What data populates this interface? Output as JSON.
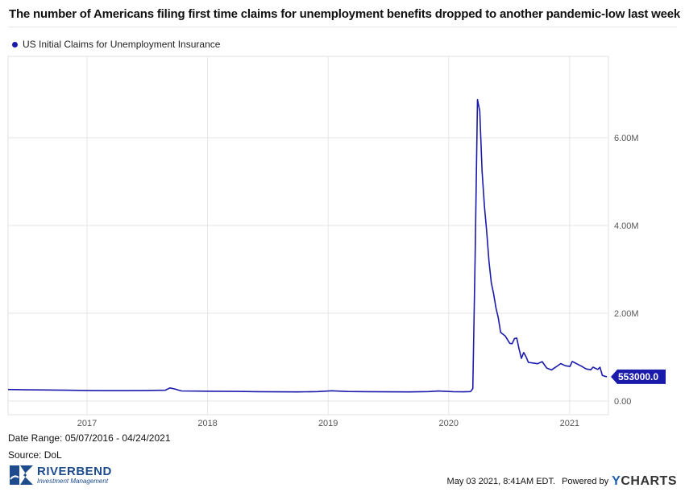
{
  "chart_data": {
    "type": "line",
    "title": "The number of Americans filing first time claims for unemployment benefits dropped to another pandemic-low last week",
    "xlabel": "",
    "ylabel": "",
    "x_ticks": [
      "2017",
      "2018",
      "2019",
      "2020",
      "2021"
    ],
    "y_ticks": [
      "0.00",
      "2.00M",
      "4.00M",
      "6.00M"
    ],
    "ylim": [
      0,
      7500000
    ],
    "grid": true,
    "legend_position": "top-left",
    "series": [
      {
        "name": "US Initial Claims for Unemployment Insurance",
        "color": "#1a1aab",
        "last_value_label": "553000.0",
        "points": [
          [
            "2016-05-07",
            262000
          ],
          [
            "2016-07-01",
            255000
          ],
          [
            "2016-09-01",
            252000
          ],
          [
            "2016-11-01",
            246000
          ],
          [
            "2017-01-01",
            240000
          ],
          [
            "2017-03-01",
            237000
          ],
          [
            "2017-05-01",
            236000
          ],
          [
            "2017-07-01",
            240000
          ],
          [
            "2017-08-26",
            245000
          ],
          [
            "2017-09-09",
            298000
          ],
          [
            "2017-09-23",
            275000
          ],
          [
            "2017-10-14",
            230000
          ],
          [
            "2017-12-01",
            226000
          ],
          [
            "2018-02-01",
            222000
          ],
          [
            "2018-04-01",
            218000
          ],
          [
            "2018-06-01",
            212000
          ],
          [
            "2018-08-01",
            210000
          ],
          [
            "2018-10-01",
            208000
          ],
          [
            "2018-12-01",
            215000
          ],
          [
            "2019-01-12",
            233000
          ],
          [
            "2019-03-01",
            216000
          ],
          [
            "2019-05-01",
            212000
          ],
          [
            "2019-07-01",
            210000
          ],
          [
            "2019-09-01",
            207000
          ],
          [
            "2019-11-01",
            215000
          ],
          [
            "2019-12-01",
            228000
          ],
          [
            "2020-01-15",
            212000
          ],
          [
            "2020-02-15",
            210000
          ],
          [
            "2020-03-07",
            215000
          ],
          [
            "2020-03-14",
            282000
          ],
          [
            "2020-03-21",
            3307000
          ],
          [
            "2020-03-28",
            6867000
          ],
          [
            "2020-04-04",
            6615000
          ],
          [
            "2020-04-11",
            5237000
          ],
          [
            "2020-04-18",
            4442000
          ],
          [
            "2020-04-25",
            3867000
          ],
          [
            "2020-05-02",
            3176000
          ],
          [
            "2020-05-09",
            2687000
          ],
          [
            "2020-05-16",
            2446000
          ],
          [
            "2020-05-23",
            2123000
          ],
          [
            "2020-05-30",
            1897000
          ],
          [
            "2020-06-06",
            1566000
          ],
          [
            "2020-06-20",
            1482000
          ],
          [
            "2020-07-04",
            1314000
          ],
          [
            "2020-07-11",
            1307000
          ],
          [
            "2020-07-18",
            1422000
          ],
          [
            "2020-07-25",
            1434000
          ],
          [
            "2020-08-01",
            1186000
          ],
          [
            "2020-08-08",
            971000
          ],
          [
            "2020-08-15",
            1104000
          ],
          [
            "2020-08-22",
            1011000
          ],
          [
            "2020-08-29",
            881000
          ],
          [
            "2020-09-12",
            866000
          ],
          [
            "2020-09-26",
            849000
          ],
          [
            "2020-10-10",
            898000
          ],
          [
            "2020-10-24",
            751000
          ],
          [
            "2020-11-07",
            709000
          ],
          [
            "2020-11-21",
            778000
          ],
          [
            "2020-12-05",
            853000
          ],
          [
            "2020-12-19",
            803000
          ],
          [
            "2021-01-02",
            787000
          ],
          [
            "2021-01-09",
            900000
          ],
          [
            "2021-01-23",
            847000
          ],
          [
            "2021-02-06",
            793000
          ],
          [
            "2021-02-20",
            730000
          ],
          [
            "2021-03-06",
            712000
          ],
          [
            "2021-03-13",
            770000
          ],
          [
            "2021-03-27",
            719000
          ],
          [
            "2021-04-03",
            769000
          ],
          [
            "2021-04-10",
            586000
          ],
          [
            "2021-04-17",
            566000
          ],
          [
            "2021-04-24",
            553000
          ]
        ]
      }
    ]
  },
  "meta": {
    "date_range": "Date Range: 05/07/2016 - 04/24/2021",
    "source": "Source: DoL",
    "timestamp": "May 03 2021, 8:41AM EDT.",
    "powered_by": "Powered by",
    "ycharts_y": "Y",
    "ycharts_rest": "CHARTS",
    "logo_main": "RIVERBEND",
    "logo_sub": "Investment Management"
  }
}
